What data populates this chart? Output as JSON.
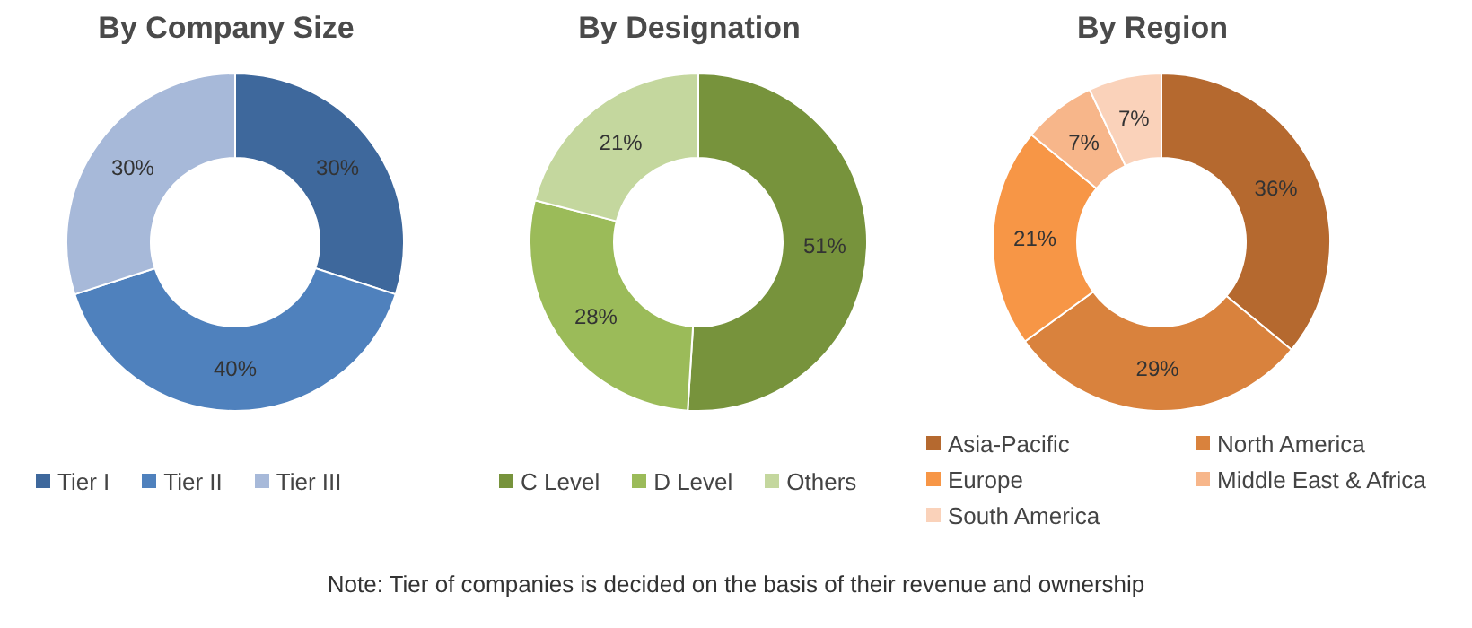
{
  "chart_data": [
    {
      "type": "donut",
      "title": "By Company Size",
      "categories": [
        "Tier I",
        "Tier II",
        "Tier III"
      ],
      "values": [
        30,
        40,
        30
      ],
      "value_labels": [
        "30%",
        "40%",
        "30%"
      ],
      "colors": [
        "#3e689c",
        "#4f81bd",
        "#a7b9d9"
      ],
      "legend": "bottom"
    },
    {
      "type": "donut",
      "title": "By Designation",
      "categories": [
        "C Level",
        "D Level",
        "Others"
      ],
      "values": [
        51,
        28,
        21
      ],
      "value_labels": [
        "51%",
        "28%",
        "21%"
      ],
      "colors": [
        "#77933c",
        "#9bbb59",
        "#c4d79e"
      ],
      "legend": "bottom"
    },
    {
      "type": "donut",
      "title": "By Region",
      "categories": [
        "Asia-Pacific",
        "North America",
        "Europe",
        "Middle East & Africa",
        "South America"
      ],
      "values": [
        36,
        29,
        21,
        7,
        7
      ],
      "value_labels": [
        "36%",
        "29%",
        "21%",
        "7%",
        "7%"
      ],
      "colors": [
        "#b5692f",
        "#d9823d",
        "#f79646",
        "#f7b68a",
        "#fad2ba"
      ],
      "legend": "bottom",
      "annotations": [
        "Note: Tier of companies is decided on the basis of their revenue and ownership"
      ]
    }
  ]
}
